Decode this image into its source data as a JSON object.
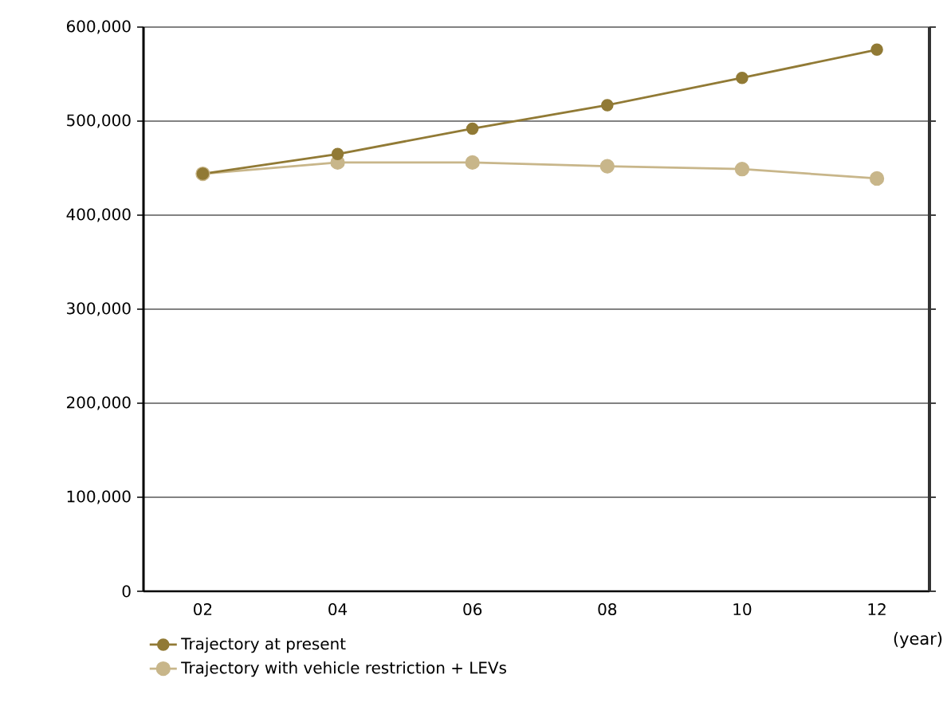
{
  "chart_data": {
    "type": "line",
    "xlabel": "(year)",
    "categories": [
      "02",
      "04",
      "06",
      "08",
      "10",
      "12"
    ],
    "series": [
      {
        "name": "Trajectory at present",
        "color": "#917a35",
        "values": [
          444000,
          465000,
          492000,
          517000,
          546000,
          576000
        ]
      },
      {
        "name": "Trajectory with vehicle restriction + LEVs",
        "color": "#c8b68a",
        "values": [
          444000,
          456000,
          456000,
          452000,
          449000,
          439000
        ]
      }
    ],
    "ylim": [
      0,
      600000
    ],
    "yticks": [
      0,
      {
        "value": 100000,
        "label": "100,000"
      },
      {
        "value": 200000,
        "label": "200,000"
      },
      {
        "value": 300000,
        "label": "300,000"
      },
      {
        "value": 400000,
        "label": "400,000"
      },
      {
        "value": 500000,
        "label": "500,000"
      },
      {
        "value": 600000,
        "label": "600,000"
      }
    ],
    "grid": "y",
    "legend": "bottom left",
    "marker": "circle",
    "line_style": "solid"
  }
}
